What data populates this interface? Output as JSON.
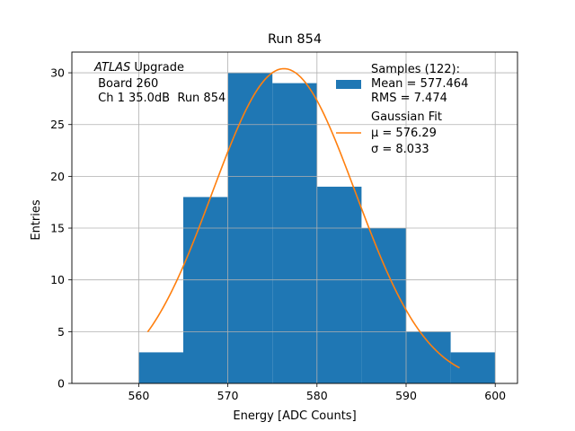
{
  "chart_data": {
    "type": "bar",
    "title": "Run 854",
    "xlabel": "Energy [ADC Counts]",
    "ylabel": "Entries",
    "xlim": [
      552.5,
      602.5
    ],
    "ylim": [
      0,
      32
    ],
    "xticks": [
      560,
      570,
      580,
      590,
      600
    ],
    "yticks": [
      0,
      5,
      10,
      15,
      20,
      25,
      30
    ],
    "grid": true,
    "bins": [
      {
        "x0": 560,
        "x1": 565,
        "count": 3
      },
      {
        "x0": 565,
        "x1": 570,
        "count": 18
      },
      {
        "x0": 570,
        "x1": 575,
        "count": 30
      },
      {
        "x0": 575,
        "x1": 580,
        "count": 29
      },
      {
        "x0": 580,
        "x1": 585,
        "count": 19
      },
      {
        "x0": 585,
        "x1": 590,
        "count": 15
      },
      {
        "x0": 590,
        "x1": 595,
        "count": 5
      },
      {
        "x0": 595,
        "x1": 600,
        "count": 3
      }
    ],
    "fit": {
      "mu": 576.29,
      "sigma": 8.033,
      "amplitude": 30.4,
      "x_start": 561,
      "x_end": 596
    },
    "series": [
      {
        "name": "Samples (122):",
        "color": "#1f77b4",
        "stats": [
          "Mean = 577.464",
          "RMS = 7.474"
        ]
      },
      {
        "name": "Gaussian Fit",
        "color": "#ff7f0e",
        "stats": [
          "μ = 576.29",
          "σ = 8.033"
        ]
      }
    ],
    "annotation": {
      "atlas": "ATLAS",
      "upgrade": " Upgrade",
      "line2": " Board 260",
      "line3": " Ch 1 35.0dB  Run 854"
    },
    "legend_position": "top-right"
  }
}
